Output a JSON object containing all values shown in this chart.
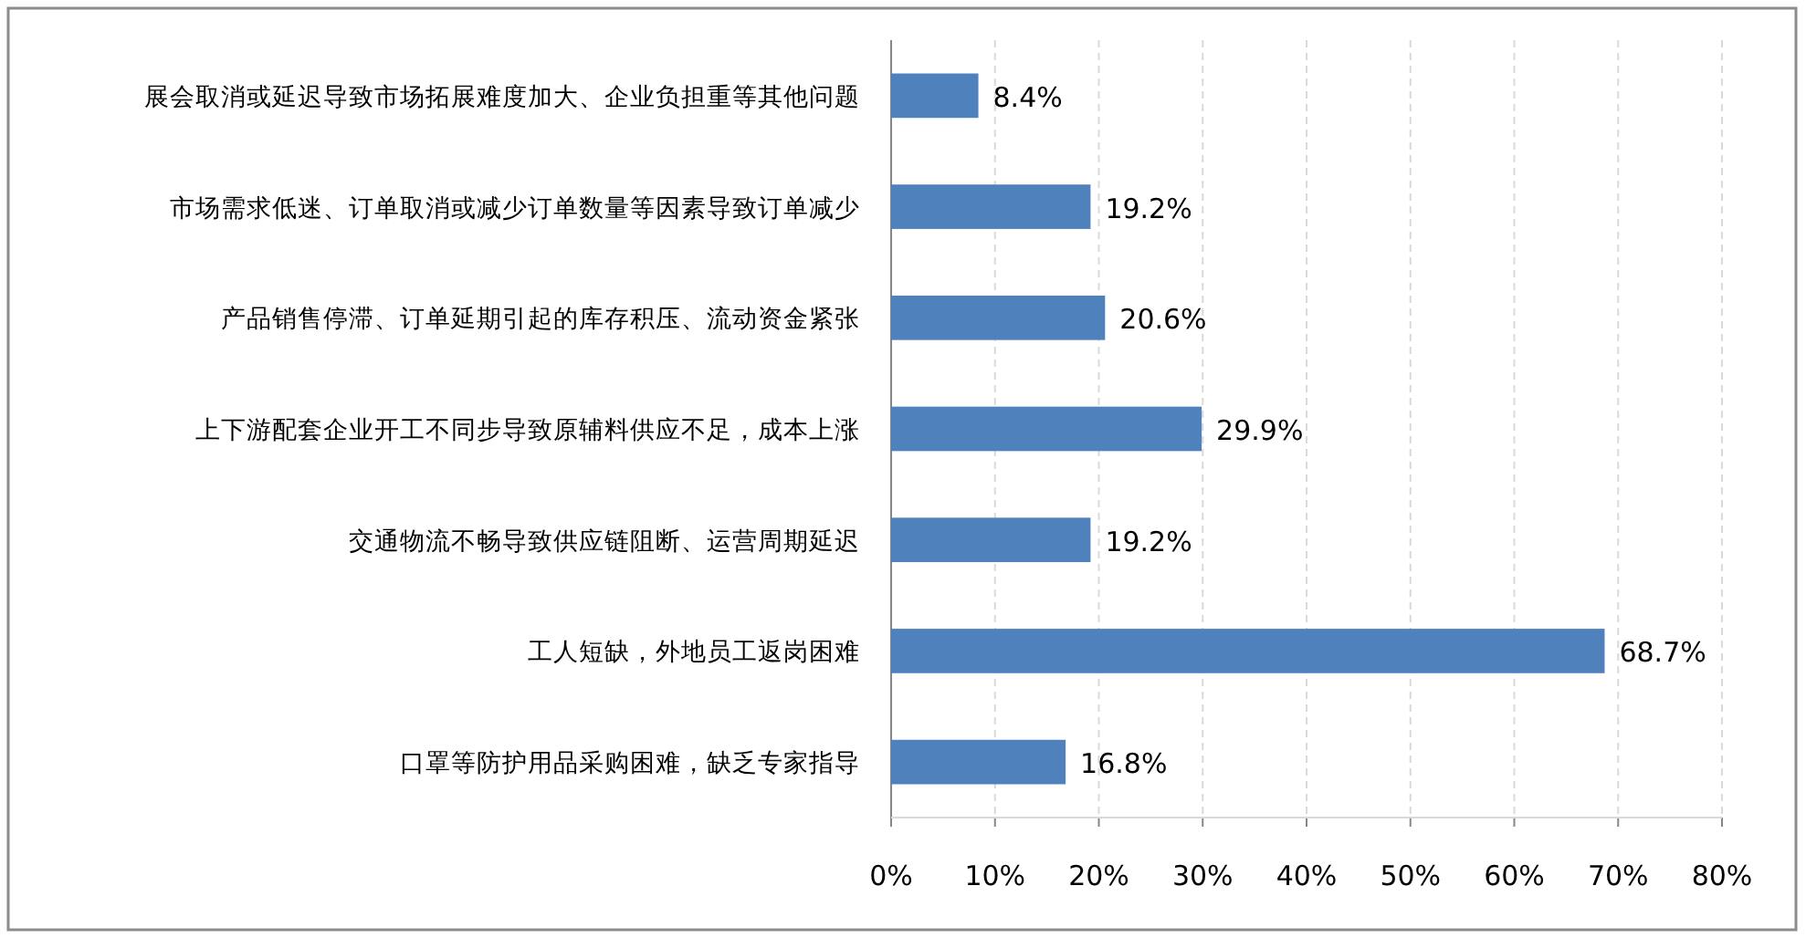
{
  "chart_data": {
    "type": "bar",
    "orientation": "horizontal",
    "categories": [
      "展会取消或延迟导致市场拓展难度加大、企业负担重等其他问题",
      "市场需求低迷、订单取消或减少订单数量等因素导致订单减少",
      "产品销售停滞、订单延期引起的库存积压、流动资金紧张",
      "上下游配套企业开工不同步导致原辅料供应不足，成本上涨",
      "交通物流不畅导致供应链阻断、运营周期延迟",
      "工人短缺，外地员工返岗困难",
      "口罩等防护用品采购困难，缺乏专家指导"
    ],
    "values": [
      8.4,
      19.2,
      20.6,
      29.9,
      19.2,
      68.7,
      16.8
    ],
    "value_labels": [
      "8.4%",
      "19.2%",
      "20.6%",
      "29.9%",
      "19.2%",
      "68.7%",
      "16.8%"
    ],
    "color": "#4f81bd",
    "xlim": [
      0,
      80
    ],
    "xticks": [
      {
        "value": 0,
        "label": "0%"
      },
      {
        "value": 10,
        "label": "10%"
      },
      {
        "value": 20,
        "label": "20%"
      },
      {
        "value": 30,
        "label": "30%"
      },
      {
        "value": 40,
        "label": "40%"
      },
      {
        "value": 50,
        "label": "50%"
      },
      {
        "value": 60,
        "label": "60%"
      },
      {
        "value": 70,
        "label": "70%"
      },
      {
        "value": 80,
        "label": "80%"
      }
    ],
    "grid": "x"
  }
}
